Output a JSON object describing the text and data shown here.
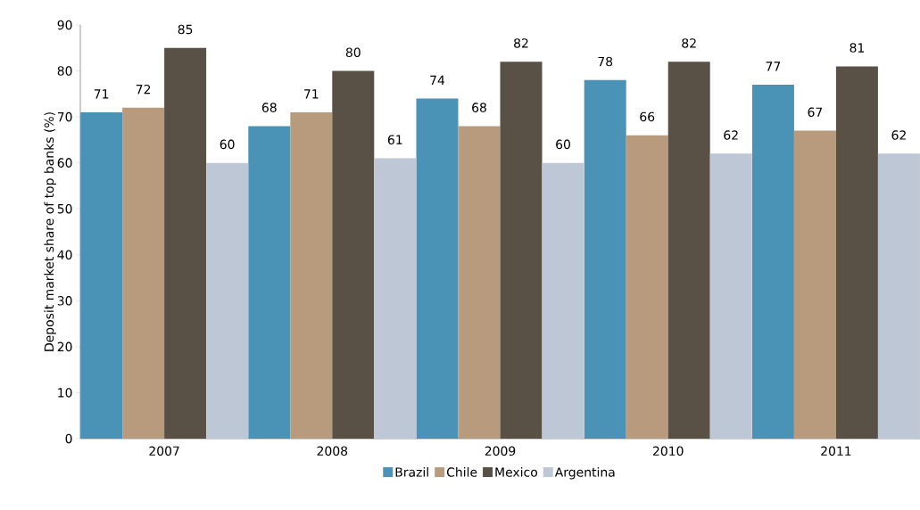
{
  "chart_data": {
    "type": "bar",
    "ylabel": "Deposit market share of top banks (%)",
    "categories": [
      "2007",
      "2008",
      "2009",
      "2010",
      "2011"
    ],
    "series": [
      {
        "name": "Brazil",
        "color": "#4a92b6",
        "values": [
          71,
          68,
          74,
          78,
          77
        ]
      },
      {
        "name": "Chile",
        "color": "#b89b7d",
        "values": [
          72,
          71,
          68,
          66,
          67
        ]
      },
      {
        "name": "Mexico",
        "color": "#595046",
        "values": [
          85,
          80,
          82,
          82,
          81
        ]
      },
      {
        "name": "Argentina",
        "color": "#bec7d6",
        "values": [
          60,
          61,
          60,
          62,
          62
        ]
      }
    ],
    "ylim": [
      0,
      90
    ],
    "yticks": [
      0,
      10,
      20,
      30,
      40,
      50,
      60,
      70,
      80,
      90
    ],
    "data_labels": true,
    "grid": false,
    "legend": "bottom"
  }
}
